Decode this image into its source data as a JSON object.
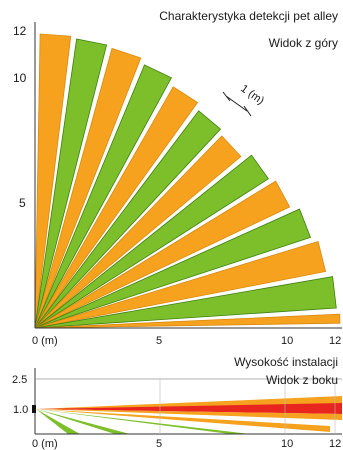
{
  "top_view": {
    "title": "Charakterystyka detekcji pet alley",
    "subtitle": "Widok z góry",
    "x_ticks": [
      "5",
      "10",
      "12"
    ],
    "y_ticks": [
      "12",
      "10",
      "5"
    ],
    "origin_label": "0 (m)",
    "scale_label": "1 (m)",
    "zone_colors": [
      "#f6a21e",
      "#7cbf2a"
    ],
    "zone_outline": "#3f7f10"
  },
  "side_view": {
    "title": "Wysokość instalacji",
    "subtitle": "Widok z boku",
    "y_ticks": [
      "2.5",
      "1.0"
    ],
    "x_ticks": [
      "5",
      "10",
      "12"
    ],
    "origin_label": "0 (m)",
    "beam_colors": [
      "#f6a21e",
      "#e8251e",
      "#7cbf2a"
    ]
  }
}
